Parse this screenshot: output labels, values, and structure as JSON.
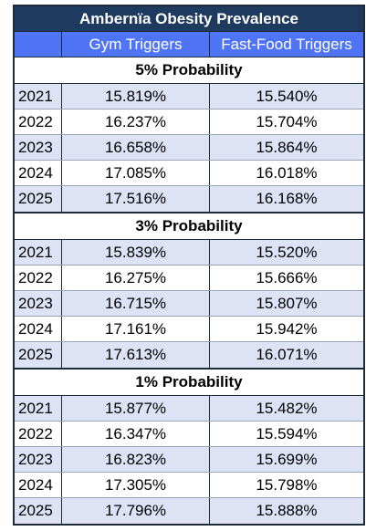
{
  "title": "Ambernïa Obesity Prevalence",
  "columns": [
    "",
    "Gym Triggers",
    "Fast-Food Triggers"
  ],
  "sections": [
    {
      "label": "5% Probability",
      "rows": [
        {
          "year": "2021",
          "gym": "15.819%",
          "fastfood": "15.540%"
        },
        {
          "year": "2022",
          "gym": "16.237%",
          "fastfood": "15.704%"
        },
        {
          "year": "2023",
          "gym": "16.658%",
          "fastfood": "15.864%"
        },
        {
          "year": "2024",
          "gym": "17.085%",
          "fastfood": "16.018%"
        },
        {
          "year": "2025",
          "gym": "17.516%",
          "fastfood": "16.168%"
        }
      ]
    },
    {
      "label": "3% Probability",
      "rows": [
        {
          "year": "2021",
          "gym": "15.839%",
          "fastfood": "15.520%"
        },
        {
          "year": "2022",
          "gym": "16.275%",
          "fastfood": "15.666%"
        },
        {
          "year": "2023",
          "gym": "16.715%",
          "fastfood": "15.807%"
        },
        {
          "year": "2024",
          "gym": "17.161%",
          "fastfood": "15.942%"
        },
        {
          "year": "2025",
          "gym": "17.613%",
          "fastfood": "16.071%"
        }
      ]
    },
    {
      "label": "1% Probability",
      "rows": [
        {
          "year": "2021",
          "gym": "15.877%",
          "fastfood": "15.482%"
        },
        {
          "year": "2022",
          "gym": "16.347%",
          "fastfood": "15.594%"
        },
        {
          "year": "2023",
          "gym": "16.823%",
          "fastfood": "15.699%"
        },
        {
          "year": "2024",
          "gym": "17.305%",
          "fastfood": "15.798%"
        },
        {
          "year": "2025",
          "gym": "17.796%",
          "fastfood": "15.888%"
        }
      ]
    }
  ],
  "colors": {
    "title_bg": "#1f3a5f",
    "header_bg": "#4f74f6",
    "row_shade": "#dde3f5"
  }
}
